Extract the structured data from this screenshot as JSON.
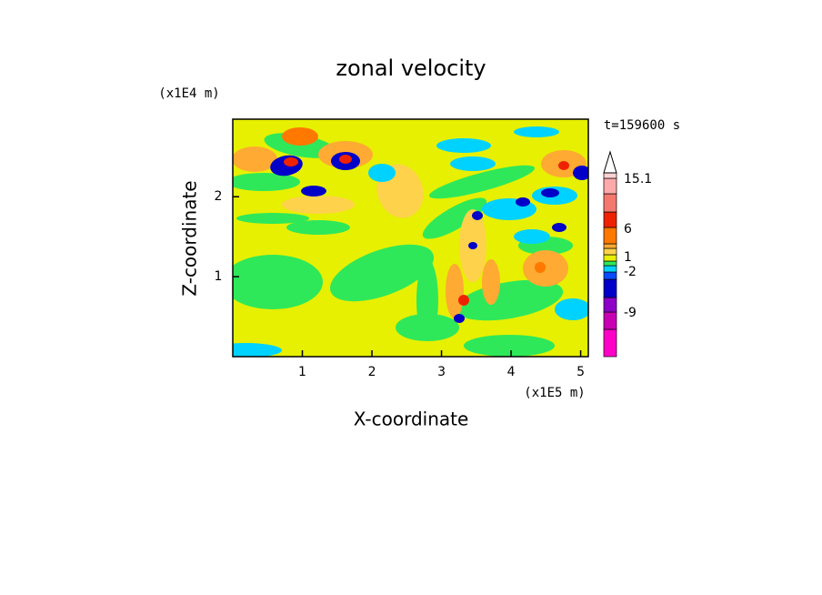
{
  "chart_data": {
    "type": "contour",
    "title": "zonal velocity",
    "time_label": "t=159600 s",
    "x_label": "X-coordinate",
    "y_label": "Z-coordinate",
    "x_scale_label": "(x1E5 m)",
    "y_scale_label": "(x1E4 m)",
    "xlim": [
      0,
      5.11
    ],
    "ylim": [
      0,
      2.97
    ],
    "xticks": [
      1,
      2,
      3,
      4,
      5
    ],
    "yticks": [
      1,
      2
    ],
    "colorbar": {
      "colors": [
        "#ff00c8",
        "#c800b4",
        "#8c00c8",
        "#0000c8",
        "#0a4bff",
        "#00d2ff",
        "#2ee85a",
        "#e6f000",
        "#ffd24b",
        "#ffaa32",
        "#ff7800",
        "#ee2200",
        "#f5786e",
        "#ffaaaa",
        "#ffd2d2",
        "#ffffff"
      ],
      "ticks": [
        -9,
        -2,
        1,
        6,
        15.1
      ]
    }
  }
}
